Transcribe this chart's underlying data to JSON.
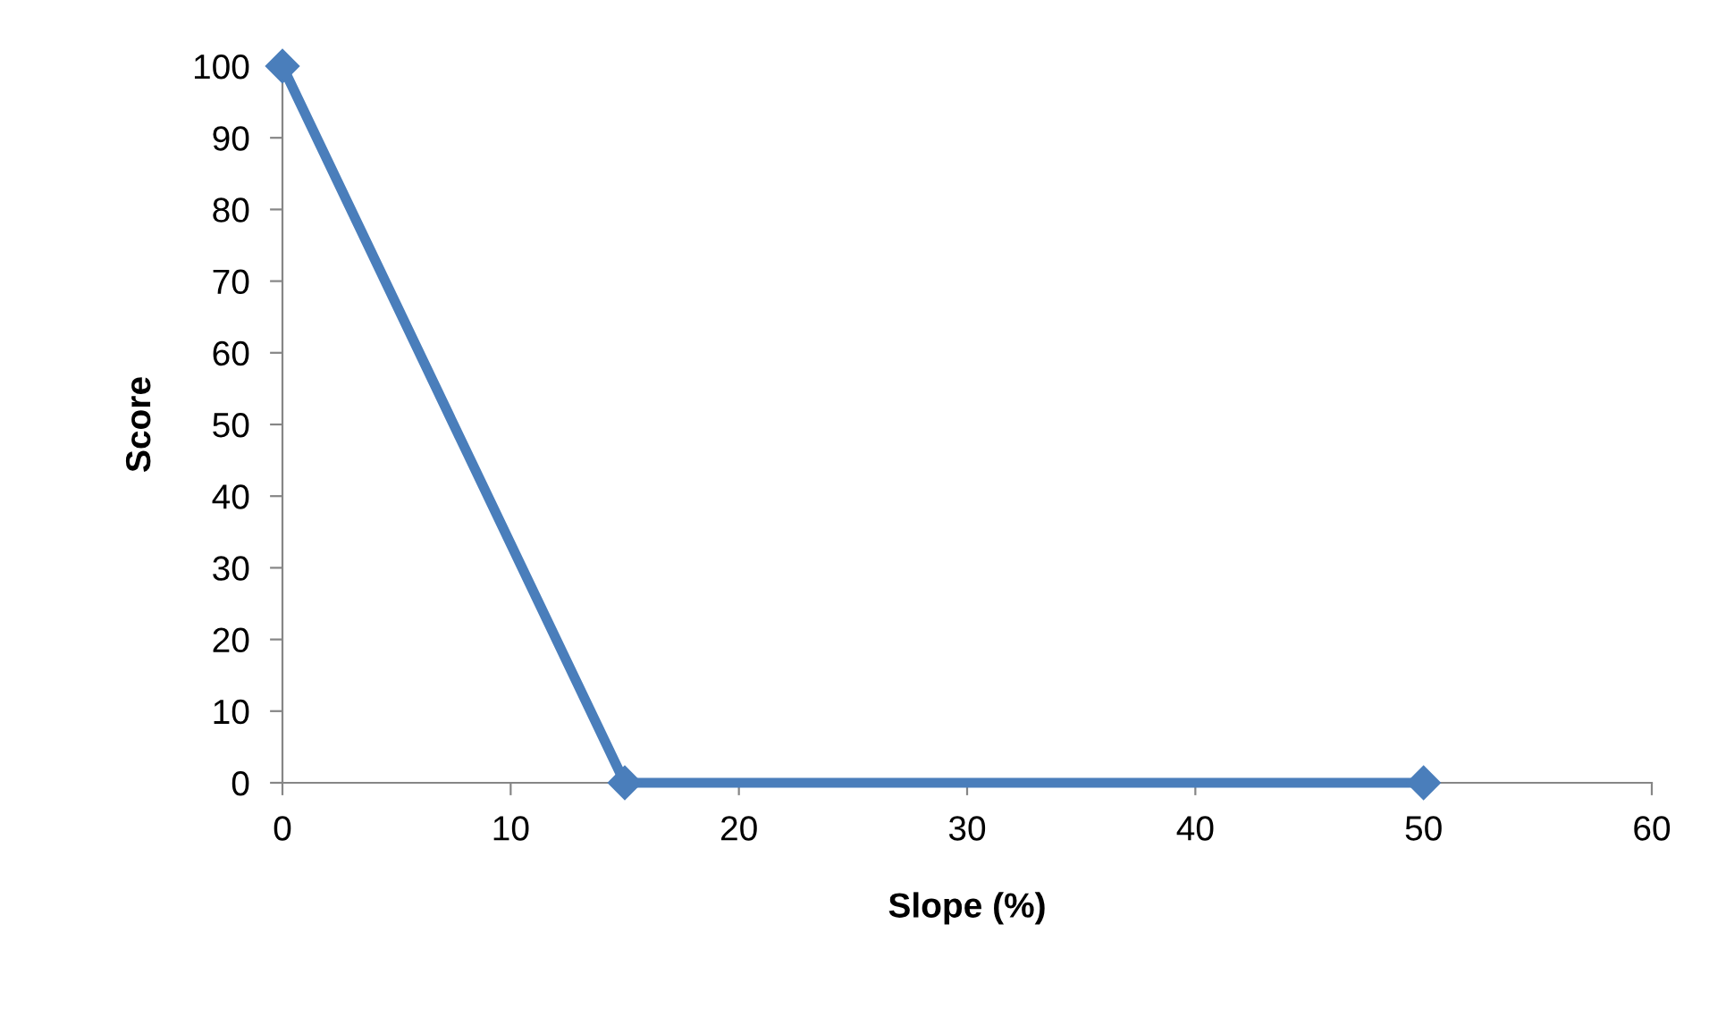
{
  "chart_data": {
    "type": "line",
    "xlabel": "Slope (%)",
    "ylabel": "Score",
    "x": [
      0,
      15,
      50
    ],
    "series": [
      {
        "color": "#4a7ebb",
        "values": [
          100,
          0,
          0
        ]
      }
    ],
    "xlim": [
      0,
      60
    ],
    "xticks": [
      0,
      10,
      20,
      30,
      40,
      50,
      60
    ],
    "ylim": [
      0,
      100
    ],
    "yticks": [
      0,
      10,
      20,
      30,
      40,
      50,
      60,
      70,
      80,
      90,
      100
    ],
    "grid": false,
    "legend": false,
    "marker": "diamond",
    "line_style": "solid"
  }
}
